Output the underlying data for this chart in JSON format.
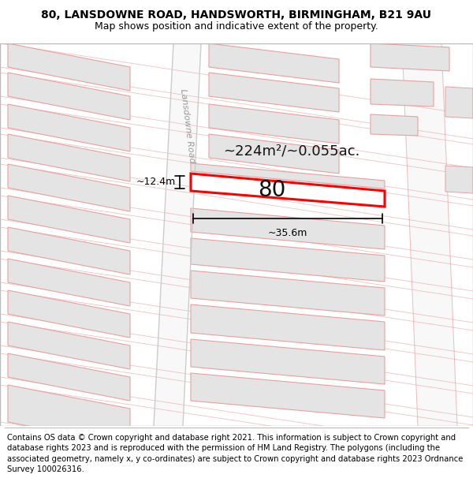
{
  "title_line1": "80, LANSDOWNE ROAD, HANDSWORTH, BIRMINGHAM, B21 9AU",
  "title_line2": "Map shows position and indicative extent of the property.",
  "footer_text": "Contains OS data © Crown copyright and database right 2021. This information is subject to Crown copyright and database rights 2023 and is reproduced with the permission of HM Land Registry. The polygons (including the associated geometry, namely x, y co-ordinates) are subject to Crown copyright and database rights 2023 Ordnance Survey 100026316.",
  "area_label": "~224m²/~0.055ac.",
  "width_label": "~35.6m",
  "height_label": "~12.4m",
  "number_label": "80",
  "road_label": "Lansdowne Road",
  "bg_color": "#ffffff",
  "map_bg": "#f2f2f2",
  "building_fill": "#e4e4e4",
  "building_stroke": "#d08080",
  "road_fill": "#f8f8f8",
  "highlight_fill": "#ffffff",
  "highlight_stroke": "#ff0000",
  "road_line_color": "#e8a0a0",
  "title_fontsize": 10,
  "subtitle_fontsize": 9,
  "footer_fontsize": 7.2,
  "label_fontsize": 13,
  "number_fontsize": 20,
  "road_label_fontsize": 8
}
